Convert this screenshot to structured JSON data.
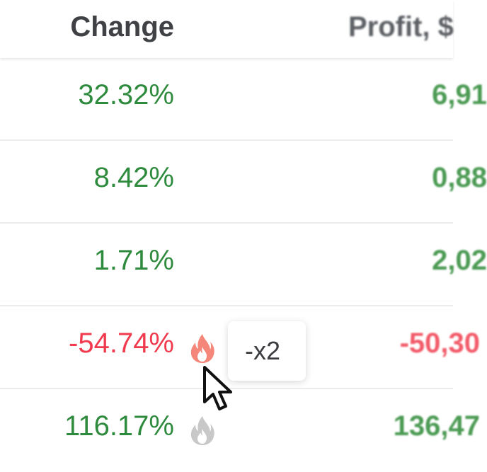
{
  "table": {
    "headers": {
      "change": "Change",
      "profit": "Profit, $"
    },
    "rows": [
      {
        "change": "32.32%",
        "change_color": "#2e8a3c",
        "profit": "6,91",
        "trend": "up"
      },
      {
        "change": "8.42%",
        "change_color": "#2e8a3c",
        "profit": "0,88",
        "trend": "up"
      },
      {
        "change": "1.71%",
        "change_color": "#2e8a3c",
        "profit": "2,02",
        "trend": "up"
      },
      {
        "change": "-54.74%",
        "change_color": "#f03a4e",
        "profit": "-50,30",
        "trend": "down",
        "icon": "fire-icon",
        "icon_state": "active"
      },
      {
        "change": "116.17%",
        "change_color": "#2e8a3c",
        "profit": "136,47",
        "trend": "up",
        "icon": "fire-icon",
        "icon_state": "inactive"
      }
    ]
  },
  "tooltip": {
    "text": "-x2"
  },
  "colors": {
    "positive": "#2e8a3c",
    "negative": "#f03a4e",
    "fire_active": "#f4877a",
    "fire_inactive": "#c8c8c8"
  }
}
